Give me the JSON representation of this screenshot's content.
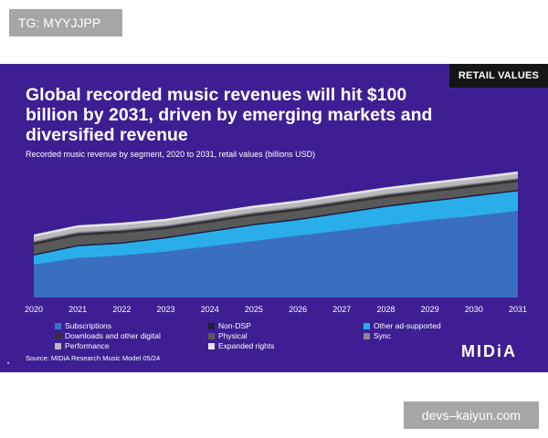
{
  "watermark_top": "TG: MYYJJPP",
  "watermark_bottom": "devs–kaiyun.com",
  "badge": "RETAIL VALUES",
  "title_lines": [
    "Global recorded music revenues will hit $100",
    "billion by 2031, driven by emerging markets and",
    "diversified revenue"
  ],
  "subtitle": "Recorded music revenue by segment, 2020 to 2031, retail values (billions USD)",
  "source": "Source: MIDiA Research Music Model 05/24",
  "logo": "MIDiA",
  "chart_data": {
    "type": "area",
    "stacked": true,
    "x": [
      "2020",
      "2021",
      "2022",
      "2023",
      "2024",
      "2025",
      "2026",
      "2027",
      "2028",
      "2029",
      "2030",
      "2031"
    ],
    "series": [
      {
        "name": "Subscriptions",
        "color": "#3a6fc0",
        "values": [
          25,
          30,
          32,
          35,
          39,
          43,
          47,
          51,
          55,
          59,
          62,
          66
        ]
      },
      {
        "name": "Other ad-supported",
        "color": "#2aaee9",
        "values": [
          7,
          9,
          9,
          10,
          11,
          12,
          12,
          13,
          14,
          14,
          15,
          15
        ]
      },
      {
        "name": "Non-DSP",
        "color": "#1a1f3a",
        "values": [
          1,
          1,
          1,
          1,
          1,
          1,
          1,
          1,
          1,
          1,
          1,
          1
        ]
      },
      {
        "name": "Physical",
        "color": "#595959",
        "values": [
          7,
          7,
          7,
          6,
          6,
          6,
          6,
          6,
          6,
          6,
          6,
          6
        ]
      },
      {
        "name": "Downloads and other digital",
        "color": "#333333",
        "values": [
          2,
          2,
          2,
          2,
          2,
          2,
          2,
          2,
          2,
          2,
          2,
          2
        ]
      },
      {
        "name": "Sync",
        "color": "#8a8a8a",
        "values": [
          1,
          1,
          1,
          1,
          1,
          1,
          1,
          1,
          1,
          1,
          1,
          1
        ]
      },
      {
        "name": "Performance",
        "color": "#b9b9b9",
        "values": [
          3,
          3,
          3,
          3,
          3,
          3,
          3,
          3,
          3,
          3,
          3,
          3
        ]
      },
      {
        "name": "Expanded rights",
        "color": "#e3e3e3",
        "values": [
          2,
          2,
          2,
          2,
          2,
          2,
          2,
          2,
          2,
          2,
          2,
          2
        ]
      }
    ],
    "ylim": [
      0,
      105
    ],
    "grid": false,
    "legend_position": "bottom",
    "legend_order": [
      "Subscriptions",
      "Non-DSP",
      "Other ad-supported",
      "Downloads and other digital",
      "Physical",
      "Sync",
      "Performance",
      "Expanded rights"
    ]
  },
  "colors": {
    "background": "#3d1f93",
    "text": "#ffffff"
  }
}
